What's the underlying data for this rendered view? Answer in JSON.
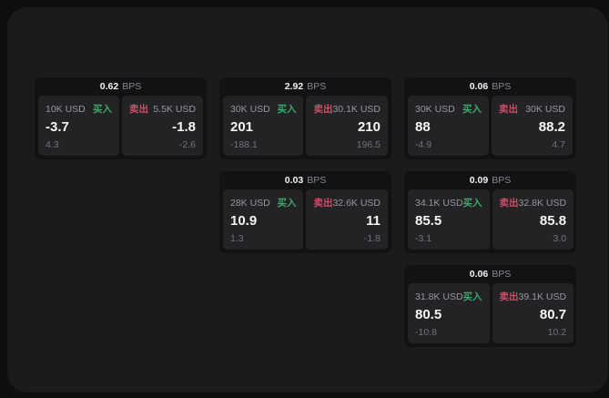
{
  "colors": {
    "background": "#0e0e0f",
    "panel": "#1b1b1d",
    "card": "#121214",
    "subpanel": "#232326",
    "buy_accent": "#3fa86b",
    "sell_accent": "#cc4f68",
    "text_primary": "#f5f5f6",
    "text_secondary": "#98989c",
    "text_dim": "#737377"
  },
  "labels": {
    "bps_unit": "BPS",
    "buy": "买入",
    "sell": "卖出"
  },
  "cards": [
    {
      "bps": "0.62",
      "buy": {
        "amount": "10K USD",
        "price": "-3.7",
        "delta": "4.3"
      },
      "sell": {
        "amount": "5.5K USD",
        "price": "-1.8",
        "delta": "-2.6"
      }
    },
    {
      "bps": "2.92",
      "buy": {
        "amount": "30K USD",
        "price": "201",
        "delta": "-188.1"
      },
      "sell": {
        "amount": "30.1K USD",
        "price": "210",
        "delta": "196.5"
      }
    },
    {
      "bps": "0.06",
      "buy": {
        "amount": "30K USD",
        "price": "88",
        "delta": "-4.9"
      },
      "sell": {
        "amount": "30K USD",
        "price": "88.2",
        "delta": "4.7"
      }
    },
    {
      "bps": "0.03",
      "buy": {
        "amount": "28K USD",
        "price": "10.9",
        "delta": "1.3"
      },
      "sell": {
        "amount": "32.6K USD",
        "price": "11",
        "delta": "-1.8"
      }
    },
    {
      "bps": "0.09",
      "buy": {
        "amount": "34.1K USD",
        "price": "85.5",
        "delta": "-3.1"
      },
      "sell": {
        "amount": "32.8K USD",
        "price": "85.8",
        "delta": "3.0"
      }
    },
    {
      "bps": "0.06",
      "buy": {
        "amount": "31.8K USD",
        "price": "80.5",
        "delta": "-10.8"
      },
      "sell": {
        "amount": "39.1K USD",
        "price": "80.7",
        "delta": "10.2"
      }
    }
  ]
}
